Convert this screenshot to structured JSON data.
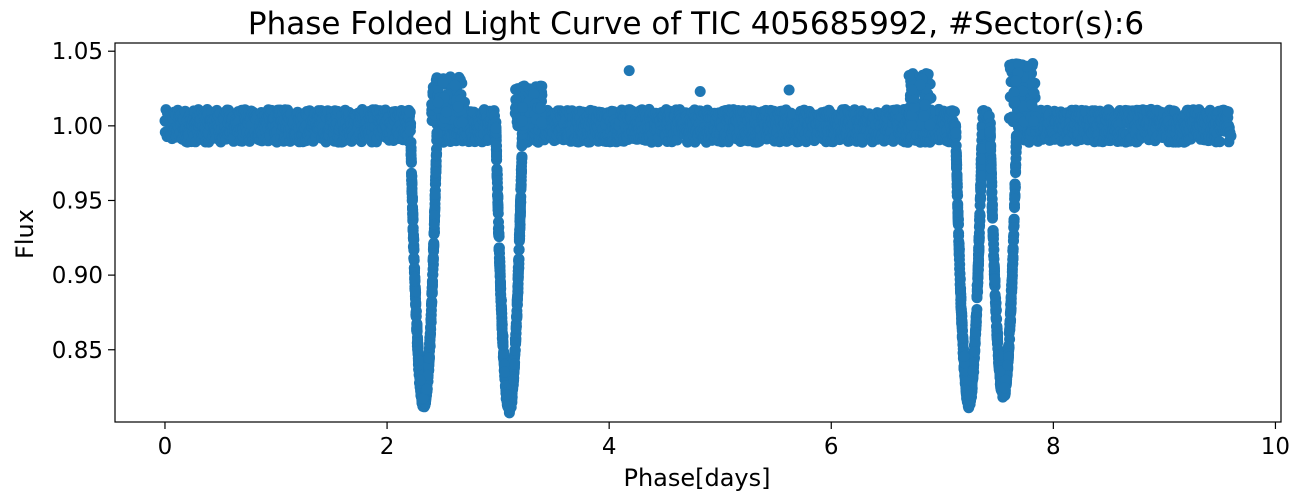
{
  "chart_data": {
    "type": "scatter",
    "title": "Phase Folded Light Curve of TIC 405685992, #Sector(s):6",
    "xlabel": "Phase[days]",
    "ylabel": "Flux",
    "xlim": [
      -0.45,
      10.05
    ],
    "ylim": [
      0.8016,
      1.0555
    ],
    "xticks": [
      0,
      2,
      4,
      6,
      8,
      10
    ],
    "xtick_labels": [
      "0",
      "2",
      "4",
      "6",
      "8",
      "10"
    ],
    "yticks": [
      0.85,
      0.9,
      0.95,
      1.0,
      1.05
    ],
    "ytick_labels": [
      "0.85",
      "0.90",
      "0.95",
      "1.00",
      "1.05"
    ],
    "grid": false,
    "marker_color": "#1f77b4",
    "baseline": {
      "x_range": [
        0.0,
        9.6
      ],
      "flux_center": 1.0,
      "flux_half_width": 0.011
    },
    "eclipses": [
      {
        "center": 2.33,
        "half_width": 0.12,
        "min_flux": 0.815
      },
      {
        "center": 3.1,
        "half_width": 0.12,
        "min_flux": 0.813
      },
      {
        "center": 7.24,
        "half_width": 0.12,
        "min_flux": 0.817
      },
      {
        "center": 7.55,
        "half_width": 0.12,
        "min_flux": 0.822
      }
    ],
    "brightenings": [
      {
        "x_range": [
          2.4,
          2.7
        ],
        "max_flux": 1.033
      },
      {
        "x_range": [
          3.15,
          3.4
        ],
        "max_flux": 1.027
      },
      {
        "x_range": [
          6.7,
          6.9
        ],
        "max_flux": 1.036
      },
      {
        "x_range": [
          7.6,
          7.85
        ],
        "max_flux": 1.042
      }
    ],
    "outliers": [
      {
        "x": 4.18,
        "y": 1.037
      },
      {
        "x": 4.82,
        "y": 1.023
      },
      {
        "x": 5.62,
        "y": 1.024
      }
    ]
  }
}
